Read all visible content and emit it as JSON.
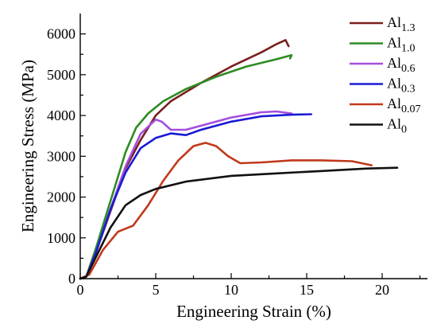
{
  "chart_data": {
    "type": "line",
    "title": "",
    "xlabel": "Engineering Strain (%)",
    "ylabel": "Engineering Stress (MPa)",
    "xlim": [
      0,
      23
    ],
    "ylim": [
      0,
      6500
    ],
    "xticks": [
      0,
      5,
      10,
      15,
      20
    ],
    "yticks": [
      0,
      1000,
      2000,
      3000,
      4000,
      5000,
      6000
    ],
    "grid": false,
    "legend_position": "top-right",
    "series": [
      {
        "name": "Al",
        "subscript": "1.3",
        "color": "#7a1f1f",
        "points": [
          [
            0,
            0
          ],
          [
            0.4,
            50
          ],
          [
            1.0,
            600
          ],
          [
            2.0,
            1650
          ],
          [
            3.0,
            2700
          ],
          [
            4.0,
            3400
          ],
          [
            5.0,
            4000
          ],
          [
            6.0,
            4350
          ],
          [
            8.0,
            4800
          ],
          [
            10.0,
            5200
          ],
          [
            12.0,
            5550
          ],
          [
            13.0,
            5750
          ],
          [
            13.6,
            5850
          ],
          [
            13.8,
            5700
          ]
        ]
      },
      {
        "name": "Al",
        "subscript": "1.0",
        "color": "#2e8b23",
        "points": [
          [
            0,
            0
          ],
          [
            0.4,
            50
          ],
          [
            1.0,
            700
          ],
          [
            2.0,
            1900
          ],
          [
            3.0,
            3100
          ],
          [
            3.7,
            3700
          ],
          [
            4.5,
            4050
          ],
          [
            5.5,
            4350
          ],
          [
            7.0,
            4650
          ],
          [
            9.0,
            4950
          ],
          [
            11.0,
            5200
          ],
          [
            13.0,
            5380
          ],
          [
            14.0,
            5480
          ],
          [
            13.9,
            5400
          ]
        ]
      },
      {
        "name": "Al",
        "subscript": "0.6",
        "color": "#a64ddb",
        "points": [
          [
            0,
            0
          ],
          [
            0.4,
            50
          ],
          [
            1.0,
            600
          ],
          [
            2.0,
            1700
          ],
          [
            3.0,
            2750
          ],
          [
            4.0,
            3550
          ],
          [
            5.0,
            3900
          ],
          [
            5.4,
            3850
          ],
          [
            6.0,
            3650
          ],
          [
            7.0,
            3650
          ],
          [
            8.0,
            3750
          ],
          [
            10.0,
            3950
          ],
          [
            12.0,
            4080
          ],
          [
            13.0,
            4100
          ],
          [
            14.0,
            4050
          ]
        ]
      },
      {
        "name": "Al",
        "subscript": "0.3",
        "color": "#1a1ad6",
        "points": [
          [
            0,
            0
          ],
          [
            0.4,
            50
          ],
          [
            1.0,
            600
          ],
          [
            2.0,
            1700
          ],
          [
            3.0,
            2600
          ],
          [
            4.0,
            3200
          ],
          [
            5.0,
            3450
          ],
          [
            6.0,
            3560
          ],
          [
            7.0,
            3520
          ],
          [
            8.0,
            3650
          ],
          [
            10.0,
            3850
          ],
          [
            12.0,
            3980
          ],
          [
            14.0,
            4020
          ],
          [
            15.3,
            4030
          ]
        ]
      },
      {
        "name": "Al",
        "subscript": "0.07",
        "color": "#c0391b",
        "points": [
          [
            0,
            0
          ],
          [
            0.6,
            100
          ],
          [
            1.5,
            700
          ],
          [
            2.5,
            1150
          ],
          [
            3.5,
            1300
          ],
          [
            4.5,
            1800
          ],
          [
            5.5,
            2400
          ],
          [
            6.5,
            2900
          ],
          [
            7.5,
            3250
          ],
          [
            8.3,
            3330
          ],
          [
            9.0,
            3250
          ],
          [
            9.8,
            3000
          ],
          [
            10.6,
            2830
          ],
          [
            12.0,
            2850
          ],
          [
            14.0,
            2900
          ],
          [
            16.0,
            2900
          ],
          [
            18.0,
            2880
          ],
          [
            19.3,
            2780
          ]
        ]
      },
      {
        "name": "Al",
        "subscript": "0",
        "color": "#111111",
        "points": [
          [
            0,
            0
          ],
          [
            0.4,
            50
          ],
          [
            1.0,
            500
          ],
          [
            2.0,
            1250
          ],
          [
            3.0,
            1800
          ],
          [
            4.0,
            2050
          ],
          [
            5.0,
            2200
          ],
          [
            7.0,
            2380
          ],
          [
            10.0,
            2520
          ],
          [
            13.0,
            2580
          ],
          [
            16.0,
            2640
          ],
          [
            19.0,
            2700
          ],
          [
            21.0,
            2720
          ]
        ]
      }
    ]
  }
}
